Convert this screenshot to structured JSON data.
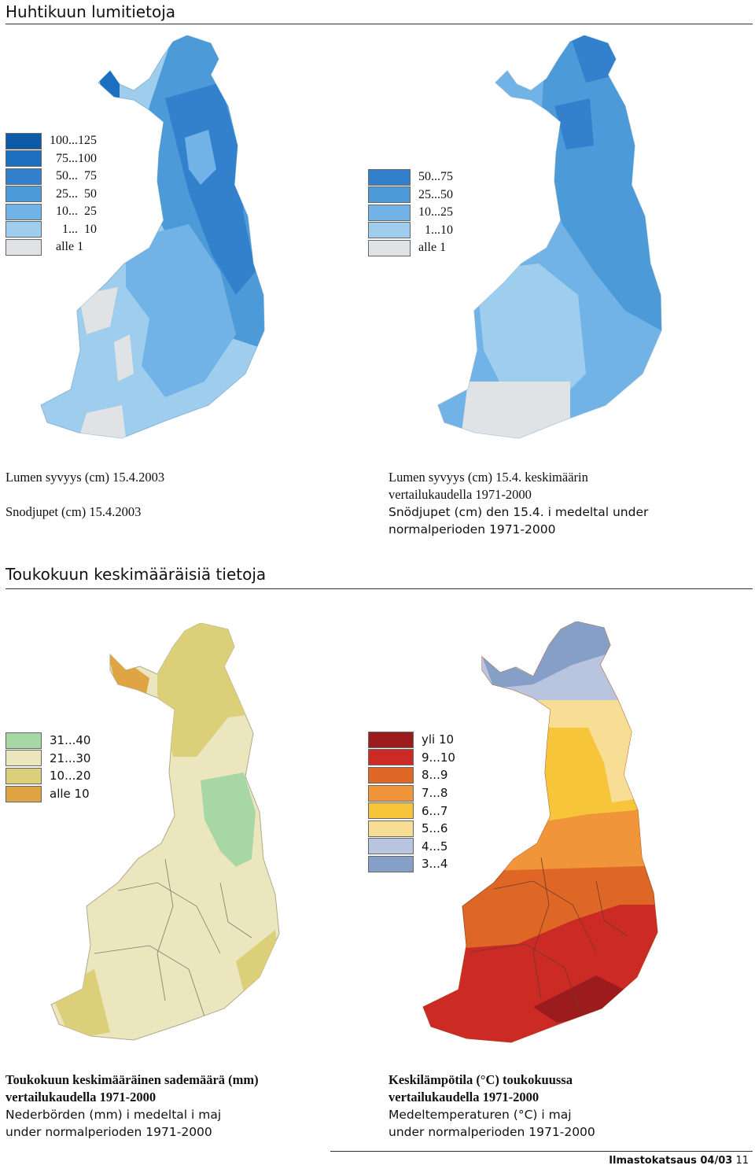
{
  "section1": {
    "title": "Huhtikuun lumitietoja"
  },
  "section2": {
    "title": "Toukokuun keskimääräisiä tietoja"
  },
  "maps": {
    "snow2003": {
      "legend": [
        {
          "label": "100...125",
          "color": "#0d5aa6"
        },
        {
          "label": "  75...100",
          "color": "#1c6fbf"
        },
        {
          "label": "  50...  75",
          "color": "#3381cc"
        },
        {
          "label": "  25...  50",
          "color": "#4d9ad9"
        },
        {
          "label": "  10...  25",
          "color": "#71b3e6"
        },
        {
          "label": "    1...  10",
          "color": "#9fcdee"
        },
        {
          "label": "  alle 1",
          "color": "#dfe3e5"
        }
      ],
      "caption_fi": "Lumen syvyys (cm) 15.4.2003",
      "caption_sv": "Snodjupet (cm) 15.4.2003"
    },
    "snowNormal": {
      "legend": [
        {
          "label": "50...75",
          "color": "#3381cc"
        },
        {
          "label": "25...50",
          "color": "#4d9ad9"
        },
        {
          "label": "10...25",
          "color": "#71b3e6"
        },
        {
          "label": "  1...10",
          "color": "#9fcdee"
        },
        {
          "label": "alle 1",
          "color": "#dfe3e5"
        }
      ],
      "caption_fi_1": "Lumen syvyys (cm) 15.4. keskimäärin",
      "caption_fi_2": "vertailukaudella 1971-2000",
      "caption_sv_1": "Snödjupet (cm) den 15.4. i medeltal under",
      "caption_sv_2": "normalperioden 1971-2000"
    },
    "precip": {
      "legend": [
        {
          "label": "31...40",
          "color": "#a8d7a6"
        },
        {
          "label": "21...30",
          "color": "#ece6bf"
        },
        {
          "label": "10...20",
          "color": "#dccf7a"
        },
        {
          "label": "alle 10",
          "color": "#dfa545"
        }
      ],
      "caption_fi_1": "Toukokuun keskimääräinen sademäärä (mm)",
      "caption_fi_2": "vertailukaudella 1971-2000",
      "caption_sv_1": "Nederbörden (mm) i medeltal  i maj",
      "caption_sv_2": "under normalperioden 1971-2000"
    },
    "temp": {
      "legend": [
        {
          "label": "yli 10",
          "color": "#9c1c1e"
        },
        {
          "label": "9...10",
          "color": "#cc2a25"
        },
        {
          "label": "8...9",
          "color": "#df6726"
        },
        {
          "label": "7...8",
          "color": "#f0953a"
        },
        {
          "label": "6...7",
          "color": "#f6c53a"
        },
        {
          "label": "5...6",
          "color": "#f8dd95"
        },
        {
          "label": "4...5",
          "color": "#b9c5df"
        },
        {
          "label": "3...4",
          "color": "#869fc6"
        }
      ],
      "caption_fi_1": "Keskilämpötila (°C)  toukokuussa",
      "caption_fi_2": "vertailukaudella 1971-2000",
      "caption_sv_1": "Medeltemperaturen (°C) i maj",
      "caption_sv_2": "under normalperioden 1971-2000"
    }
  },
  "footer": {
    "publication": "Ilmastokatsaus 04/03",
    "page": "11"
  }
}
